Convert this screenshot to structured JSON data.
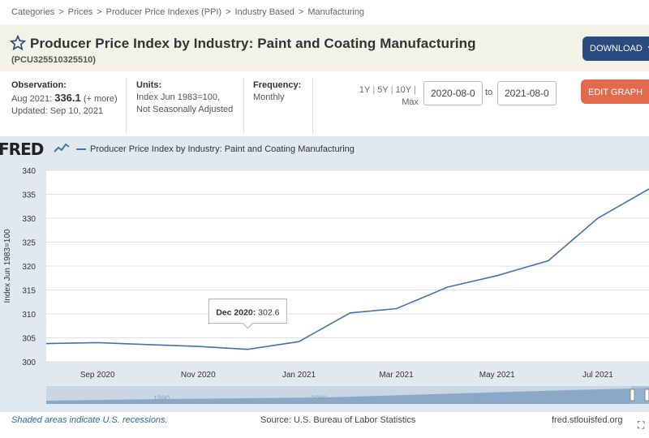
{
  "breadcrumb": [
    "Categories",
    "Prices",
    "Producer Price Indexes (PPI)",
    "Industry Based",
    "Manufacturing"
  ],
  "header": {
    "title": "Producer Price Index by Industry: Paint and Coating Manufacturing",
    "series_id": "(PCU325510325510)",
    "download_label": "DOWNLOAD",
    "edit_label": "EDIT GRAPH"
  },
  "meta": {
    "observation_label": "Observation:",
    "observation_period": "Aug 2021:",
    "observation_value": "336.1",
    "observation_note": "(+ more)",
    "updated": "Updated: Sep 10, 2021",
    "units_label": "Units:",
    "units_line1": "Index Jun 1983=100,",
    "units_line2": "Not Seasonally Adjusted",
    "frequency_label": "Frequency:",
    "frequency_value": "Monthly"
  },
  "range": {
    "links": [
      "1Y",
      "5Y",
      "10Y",
      "Max"
    ],
    "start_date": "2020-08-0",
    "to_label": "to",
    "end_date": "2021-08-0"
  },
  "chart_data": {
    "type": "line",
    "legend": "Producer Price Index by Industry: Paint and Coating Manufacturing",
    "ylabel": "Index Jun 1983=100",
    "ylim": [
      300,
      340
    ],
    "yticks": [
      300,
      305,
      310,
      315,
      320,
      325,
      330,
      335,
      340
    ],
    "xlim": [
      "2020-08-01",
      "2021-08-01"
    ],
    "xticks": [
      {
        "date": "2020-09-01",
        "label": "Sep 2020"
      },
      {
        "date": "2020-11-01",
        "label": "Nov 2020"
      },
      {
        "date": "2021-01-01",
        "label": "Jan 2021"
      },
      {
        "date": "2021-03-01",
        "label": "Mar 2021"
      },
      {
        "date": "2021-05-01",
        "label": "May 2021"
      },
      {
        "date": "2021-07-01",
        "label": "Jul 2021"
      }
    ],
    "grid": true,
    "color": "#4572a7",
    "series": [
      {
        "x": [
          "2020-08-01",
          "2020-09-01",
          "2020-10-01",
          "2020-11-01",
          "2020-12-01",
          "2021-01-01",
          "2021-02-01",
          "2021-03-01",
          "2021-04-01",
          "2021-05-01",
          "2021-06-01",
          "2021-07-01",
          "2021-08-01"
        ],
        "values": [
          303.8,
          304.0,
          303.6,
          303.2,
          302.6,
          304.2,
          310.2,
          311.1,
          315.6,
          318.0,
          321.1,
          330.0,
          336.1
        ]
      }
    ],
    "tooltip": {
      "label": "Dec 2020:",
      "value": "302.6",
      "x": "2020-12-01"
    },
    "navigator_labels": [
      "1990",
      "2000",
      "2010"
    ]
  },
  "footer": {
    "recessions": "Shaded areas indicate U.S. recessions.",
    "source": "Source: U.S. Bureau of Labor Statistics",
    "site": "fred.stlouisfed.org"
  },
  "icons": {
    "star": "star-icon",
    "download": "download-icon",
    "gear": "gear-icon",
    "expand": "expand-icon"
  }
}
